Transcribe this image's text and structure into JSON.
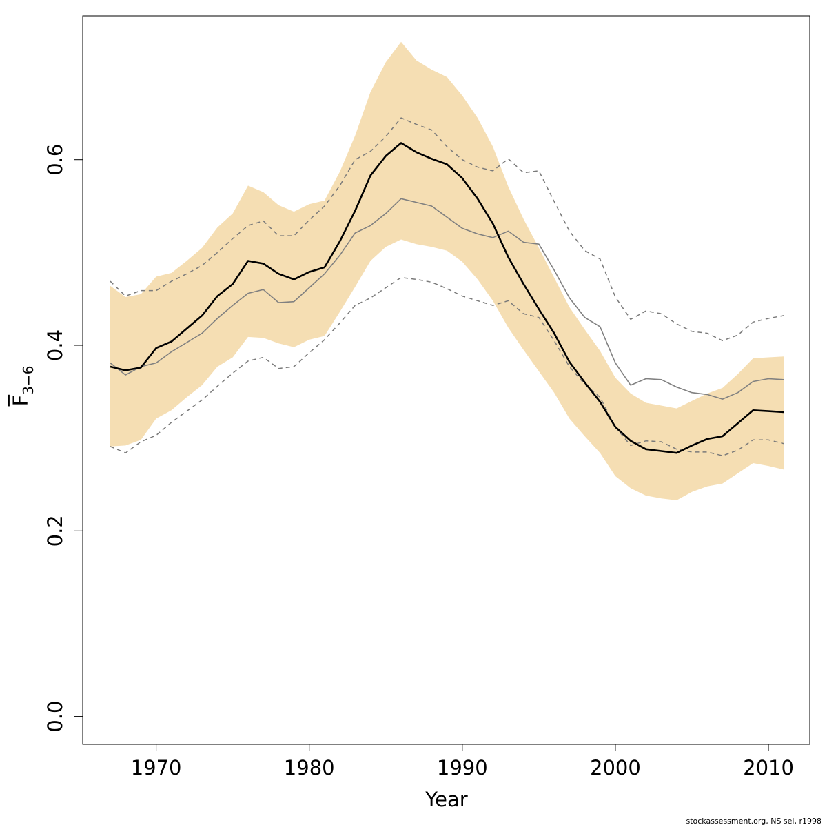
{
  "chart_data": {
    "type": "line",
    "xlabel": "Year",
    "ylabel": {
      "main": "F",
      "subscript": "3−6"
    },
    "xlim": [
      1965.2,
      2012.7
    ],
    "ylim": [
      -0.03,
      0.755
    ],
    "x_ticks": [
      1970,
      1980,
      1990,
      2000,
      2010
    ],
    "y_ticks": [
      0.0,
      0.2,
      0.4,
      0.6
    ],
    "y_tick_labels": [
      "0.0",
      "0.2",
      "0.4",
      "0.6"
    ],
    "grid": false,
    "legend": "none",
    "colors": {
      "band": "#f5deb3",
      "estimate": "#000000",
      "comparison": "#808080",
      "comparison_ci": "#7a7a7a"
    },
    "x": [
      1967,
      1968,
      1969,
      1970,
      1971,
      1972,
      1973,
      1974,
      1975,
      1976,
      1977,
      1978,
      1979,
      1980,
      1981,
      1982,
      1983,
      1984,
      1985,
      1986,
      1987,
      1988,
      1989,
      1990,
      1991,
      1992,
      1993,
      1994,
      1995,
      1996,
      1997,
      1998,
      1999,
      2000,
      2001,
      2002,
      2003,
      2004,
      2005,
      2006,
      2007,
      2008,
      2009,
      2010,
      2011
    ],
    "band": {
      "upper": [
        0.464,
        0.452,
        0.455,
        0.474,
        0.478,
        0.491,
        0.505,
        0.527,
        0.542,
        0.572,
        0.565,
        0.551,
        0.544,
        0.552,
        0.556,
        0.587,
        0.626,
        0.673,
        0.705,
        0.727,
        0.707,
        0.697,
        0.689,
        0.669,
        0.645,
        0.614,
        0.571,
        0.536,
        0.505,
        0.473,
        0.441,
        0.417,
        0.394,
        0.365,
        0.348,
        0.338,
        0.335,
        0.332,
        0.34,
        0.348,
        0.354,
        0.369,
        0.386,
        0.387,
        0.388
      ],
      "lower": [
        0.291,
        0.292,
        0.298,
        0.321,
        0.33,
        0.344,
        0.357,
        0.377,
        0.387,
        0.409,
        0.408,
        0.402,
        0.398,
        0.406,
        0.41,
        0.436,
        0.463,
        0.491,
        0.506,
        0.514,
        0.509,
        0.506,
        0.502,
        0.49,
        0.471,
        0.448,
        0.419,
        0.395,
        0.372,
        0.349,
        0.321,
        0.302,
        0.284,
        0.259,
        0.246,
        0.238,
        0.235,
        0.233,
        0.242,
        0.248,
        0.251,
        0.262,
        0.273,
        0.27,
        0.266
      ]
    },
    "series": [
      {
        "style": "solid-thick",
        "values": [
          0.377,
          0.373,
          0.376,
          0.397,
          0.404,
          0.418,
          0.432,
          0.453,
          0.466,
          0.491,
          0.488,
          0.477,
          0.471,
          0.479,
          0.484,
          0.512,
          0.545,
          0.583,
          0.604,
          0.618,
          0.608,
          0.601,
          0.595,
          0.58,
          0.558,
          0.531,
          0.495,
          0.466,
          0.439,
          0.413,
          0.382,
          0.36,
          0.339,
          0.312,
          0.297,
          0.288,
          0.286,
          0.284,
          0.292,
          0.299,
          0.302,
          0.316,
          0.33,
          0.329,
          0.328
        ]
      },
      {
        "style": "solid-thin",
        "values": [
          0.381,
          0.368,
          0.377,
          0.381,
          0.393,
          0.403,
          0.413,
          0.429,
          0.443,
          0.456,
          0.46,
          0.446,
          0.447,
          0.462,
          0.477,
          0.497,
          0.521,
          0.529,
          0.542,
          0.558,
          0.554,
          0.55,
          0.538,
          0.526,
          0.52,
          0.516,
          0.523,
          0.511,
          0.509,
          0.481,
          0.451,
          0.43,
          0.42,
          0.381,
          0.357,
          0.364,
          0.363,
          0.355,
          0.349,
          0.347,
          0.342,
          0.349,
          0.361,
          0.364,
          0.363
        ]
      },
      {
        "style": "dashed-upper",
        "values": [
          0.469,
          0.453,
          0.459,
          0.459,
          0.469,
          0.477,
          0.486,
          0.5,
          0.515,
          0.529,
          0.534,
          0.518,
          0.518,
          0.535,
          0.55,
          0.572,
          0.6,
          0.609,
          0.625,
          0.645,
          0.638,
          0.632,
          0.614,
          0.6,
          0.592,
          0.588,
          0.601,
          0.586,
          0.588,
          0.555,
          0.523,
          0.502,
          0.493,
          0.452,
          0.428,
          0.437,
          0.434,
          0.423,
          0.415,
          0.413,
          0.405,
          0.411,
          0.425,
          0.429,
          0.432
        ]
      },
      {
        "style": "dashed-lower",
        "values": [
          0.291,
          0.284,
          0.296,
          0.303,
          0.317,
          0.329,
          0.341,
          0.356,
          0.37,
          0.383,
          0.387,
          0.375,
          0.377,
          0.392,
          0.406,
          0.424,
          0.443,
          0.451,
          0.462,
          0.473,
          0.471,
          0.468,
          0.461,
          0.453,
          0.448,
          0.443,
          0.448,
          0.434,
          0.43,
          0.405,
          0.377,
          0.358,
          0.344,
          0.312,
          0.292,
          0.297,
          0.296,
          0.288,
          0.285,
          0.285,
          0.281,
          0.287,
          0.298,
          0.298,
          0.294
        ]
      }
    ]
  },
  "footer": "stockassessment.org, NS sei, r1998"
}
